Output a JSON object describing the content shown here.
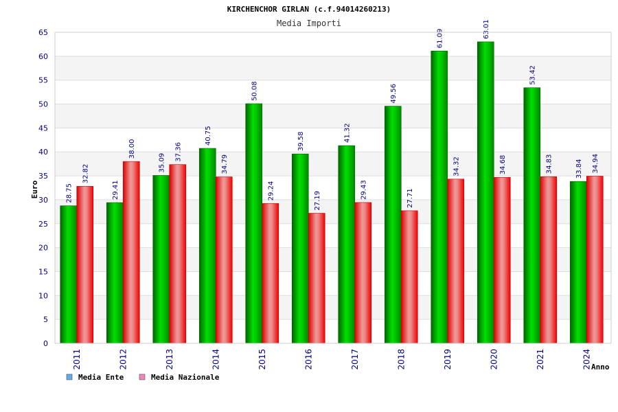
{
  "chart_data": {
    "type": "bar",
    "title": "KIRCHENCHOR GIRLAN (c.f.94014260213)",
    "subtitle": "Media Importi",
    "xlabel": "Anno",
    "ylabel": "Euro",
    "ylim": [
      0,
      65
    ],
    "yticks": [
      "0",
      "5",
      "10",
      "15",
      "20",
      "25",
      "30",
      "35",
      "40",
      "45",
      "50",
      "55",
      "60",
      "65"
    ],
    "categories": [
      "2011",
      "2012",
      "2013",
      "2014",
      "2015",
      "2016",
      "2017",
      "2018",
      "2019",
      "2020",
      "2021",
      "2024"
    ],
    "series": [
      {
        "name": "Media Ente",
        "color": "#00cc00",
        "values": [
          28.75,
          29.41,
          35.09,
          40.75,
          50.08,
          39.58,
          41.32,
          49.56,
          61.09,
          63.01,
          53.42,
          33.84
        ],
        "labels": [
          "28.75",
          "29.41",
          "35.09",
          "40.75",
          "50.08",
          "39.58",
          "41.32",
          "49.56",
          "61.09",
          "63.01",
          "53.42",
          "33.84"
        ]
      },
      {
        "name": "Media Nazionale",
        "color": "#ff0000",
        "values": [
          32.82,
          38.0,
          37.36,
          34.79,
          29.24,
          27.19,
          29.43,
          27.71,
          34.32,
          34.68,
          34.83,
          34.94
        ],
        "labels": [
          "32.82",
          "38.00",
          "37.36",
          "34.79",
          "29.24",
          "27.19",
          "29.43",
          "27.71",
          "34.32",
          "34.68",
          "34.83",
          "34.94"
        ]
      }
    ],
    "legend_position": "bottom-left",
    "grid": true,
    "legend_swatch_colors": [
      "#66aaee",
      "#ee88bb"
    ]
  }
}
